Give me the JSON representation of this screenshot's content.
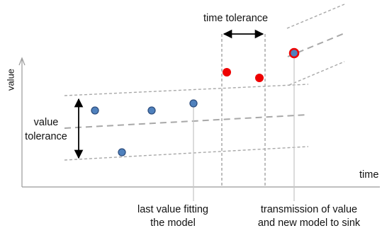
{
  "axes": {
    "y_label": "value",
    "x_label": "time"
  },
  "labels": {
    "time_tolerance": "time tolerance",
    "value_tolerance_line1": "value",
    "value_tolerance_line2": "tolerance",
    "last_fit_line1": "last value fitting",
    "last_fit_line2": "the model",
    "transmission_line1": "transmission of value",
    "transmission_line2": "and new model to sink"
  },
  "colors": {
    "axis": "#9a9a9a",
    "dash": "#a8a8a8",
    "fitting_point_fill": "#4f81bd",
    "fitting_point_stroke": "#2f4f7f",
    "outlier_point_fill": "#ee0000",
    "new_point_ring": "#ee0000",
    "arrow": "#000000",
    "guide_line": "#c8c8c8"
  },
  "points": {
    "fitting": 4,
    "outliers": 2,
    "new_model": 1
  }
}
